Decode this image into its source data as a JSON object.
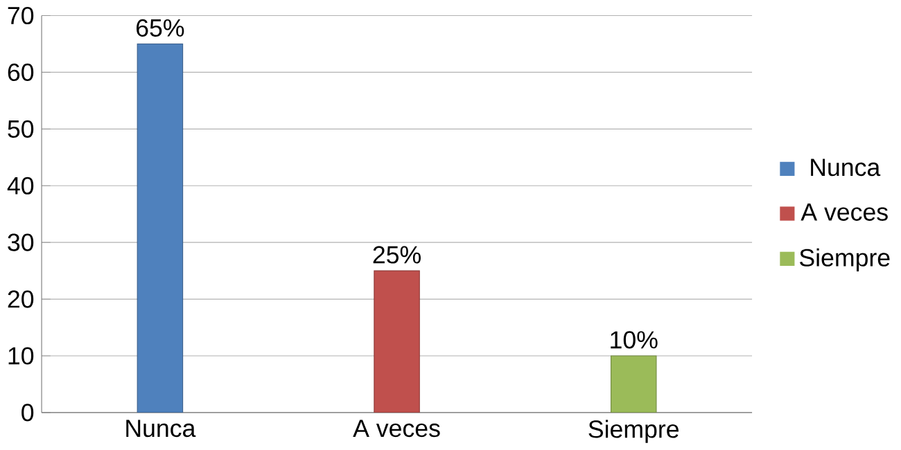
{
  "chart_data": {
    "type": "bar",
    "categories": [
      "Nunca",
      "A veces",
      "Siempre"
    ],
    "series": [
      {
        "name": "Nunca",
        "color": "#4f81bd",
        "values": [
          65,
          null,
          null
        ],
        "value_labels": [
          "65%",
          null,
          null
        ]
      },
      {
        "name": "A veces",
        "color": "#c0504d",
        "values": [
          null,
          25,
          null
        ],
        "value_labels": [
          null,
          "25%",
          null
        ]
      },
      {
        "name": "Siempre",
        "color": "#9bbb59",
        "values": [
          null,
          null,
          10
        ],
        "value_labels": [
          null,
          null,
          "10%"
        ]
      }
    ],
    "ylim": [
      0,
      70
    ],
    "yticks": [
      0,
      10,
      20,
      30,
      40,
      50,
      60,
      70
    ],
    "grid": "y",
    "legend": "right"
  }
}
